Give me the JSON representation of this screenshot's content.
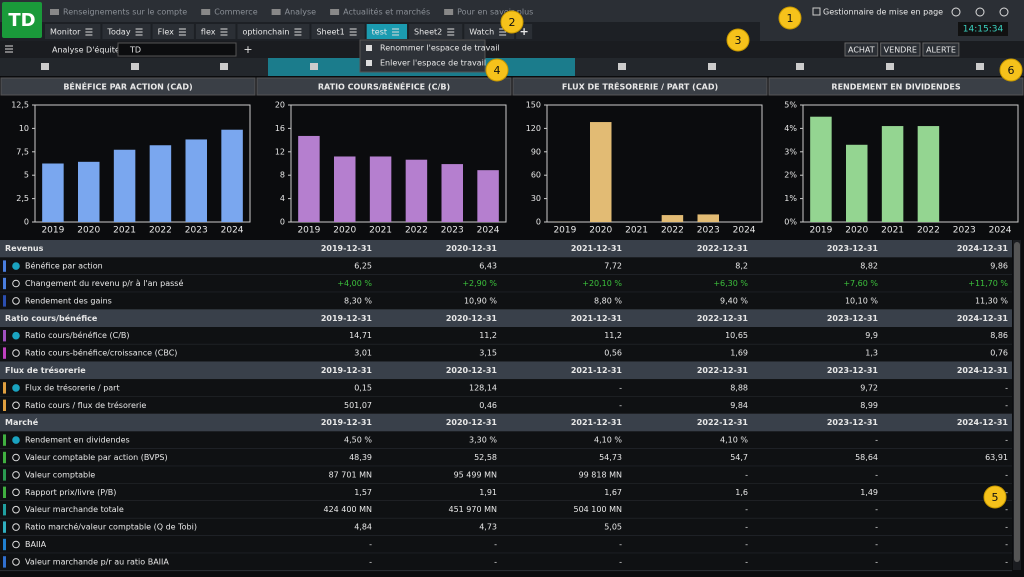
{
  "logo": "TD",
  "nav": [
    "Renseignements sur le compte",
    "Commerce",
    "Analyse",
    "Actualités et marchés",
    "Pour en savoir plus"
  ],
  "layout_manager": "Gestionnaire de mise en page",
  "clock": "14:15:34",
  "tabs": [
    "Monitor",
    "Today",
    "Flex",
    "flex",
    "optionchain",
    "Sheet1",
    "test",
    "Sheet2",
    "Watch"
  ],
  "active_tab": 6,
  "add_tab": "+",
  "toolbar": {
    "module": "Analyse D'équité",
    "search": "TD",
    "add": "+",
    "buttons": [
      "ACHAT",
      "VENDRE",
      "ALERTE"
    ]
  },
  "menu": [
    "Renommer l'espace de travail",
    "Enlever l'espace de travail"
  ],
  "badges": [
    "1",
    "2",
    "3",
    "4",
    "5",
    "6"
  ],
  "chart_data": [
    {
      "type": "bar",
      "title": "BÉNÉFICE PAR ACTION (CAD)",
      "categories": [
        "2019",
        "2020",
        "2021",
        "2022",
        "2023",
        "2024"
      ],
      "values": [
        6.25,
        6.43,
        7.72,
        8.2,
        8.82,
        9.86
      ],
      "color": "#7aa7ef",
      "ylim": [
        0,
        12.5
      ],
      "yticks": [
        0,
        {
          "value": 2.5,
          "label": "2,5"
        },
        5,
        {
          "value": 7.5,
          "label": "7,5"
        },
        10,
        {
          "value": 12.5,
          "label": "12,5"
        }
      ],
      "grid": false
    },
    {
      "type": "bar",
      "title": "RATIO COURS/BÉNÉFICE (C/B)",
      "categories": [
        "2019",
        "2020",
        "2021",
        "2022",
        "2023",
        "2024"
      ],
      "values": [
        14.71,
        11.2,
        11.2,
        10.65,
        9.9,
        8.86
      ],
      "color": "#b57fcf",
      "ylim": [
        0,
        20
      ],
      "yticks": [
        0,
        4,
        8,
        12,
        16,
        20
      ],
      "grid": false
    },
    {
      "type": "bar",
      "title": "FLUX DE TRÉSORERIE / PART (CAD)",
      "categories": [
        "2019",
        "2020",
        "2021",
        "2022",
        "2023",
        "2024"
      ],
      "values": [
        0.15,
        128.14,
        null,
        8.88,
        9.72,
        null
      ],
      "color": "#e2bb74",
      "ylim": [
        0,
        150
      ],
      "yticks": [
        0,
        30,
        60,
        90,
        120,
        150
      ],
      "grid": false
    },
    {
      "type": "bar",
      "title": "RENDEMENT EN DIVIDENDES",
      "categories": [
        "2019",
        "2020",
        "2021",
        "2022",
        "2023",
        "2024"
      ],
      "values": [
        4.5,
        3.3,
        4.1,
        4.1,
        null,
        null
      ],
      "color": "#94d591",
      "ylim": [
        0,
        5
      ],
      "yticks": [
        {
          "value": 0,
          "label": "0%"
        },
        {
          "value": 1,
          "label": "1%"
        },
        {
          "value": 2,
          "label": "2%"
        },
        {
          "value": 3,
          "label": "3%"
        },
        {
          "value": 4,
          "label": "4%"
        },
        {
          "value": 5,
          "label": "5%"
        }
      ],
      "grid": false
    }
  ],
  "table": {
    "sections": [
      {
        "title": "Revenus",
        "dates": [
          "2019-12-31",
          "2020-12-31",
          "2021-12-31",
          "2022-12-31",
          "2023-12-31",
          "2024-12-31"
        ],
        "rows": [
          {
            "label": "Bénéfice par action",
            "color": "#4a7fe0",
            "primary": true,
            "values": [
              "6,25",
              "6,43",
              "7,72",
              "8,2",
              "8,82",
              "9,86"
            ]
          },
          {
            "label": "Changement du revenu p/r à l'an passé",
            "color": "#4a7fe0",
            "primary": false,
            "value_color": "#3cc03c",
            "values": [
              "+4,00 %",
              "+2,90 %",
              "+20,10 %",
              "+6,30 %",
              "+7,60 %",
              "+11,70 %"
            ]
          },
          {
            "label": "Rendement des gains",
            "color": "#2b4fb0",
            "primary": false,
            "values": [
              "8,30 %",
              "10,90 %",
              "8,80 %",
              "9,40 %",
              "10,10 %",
              "11,30 %"
            ]
          }
        ]
      },
      {
        "title": "Ratio cours/bénéfice",
        "dates": [
          "2019-12-31",
          "2020-12-31",
          "2021-12-31",
          "2022-12-31",
          "2023-12-31",
          "2024-12-31"
        ],
        "rows": [
          {
            "label": "Ratio cours/bénéfice (C/B)",
            "color": "#a050c0",
            "primary": true,
            "values": [
              "14,71",
              "11,2",
              "11,2",
              "10,65",
              "9,9",
              "8,86"
            ]
          },
          {
            "label": "Ratio cours-bénéfice/croissance (CBC)",
            "color": "#c040c0",
            "primary": false,
            "values": [
              "3,01",
              "3,15",
              "0,56",
              "1,69",
              "1,3",
              "0,76"
            ]
          }
        ]
      },
      {
        "title": "Flux de trésorerie",
        "dates": [
          "2019-12-31",
          "2020-12-31",
          "2021-12-31",
          "2022-12-31",
          "2023-12-31",
          "2024-12-31"
        ],
        "rows": [
          {
            "label": "Flux de trésorerie / part",
            "color": "#e0a040",
            "primary": true,
            "values": [
              "0,15",
              "128,14",
              "-",
              "8,88",
              "9,72",
              "-"
            ]
          },
          {
            "label": "Ratio cours / flux de trésorerie",
            "color": "#e0a040",
            "primary": false,
            "values": [
              "501,07",
              "0,46",
              "-",
              "9,84",
              "8,99",
              "-"
            ]
          }
        ]
      },
      {
        "title": "Marché",
        "dates": [
          "2019-12-31",
          "2020-12-31",
          "2021-12-31",
          "2022-12-31",
          "2023-12-31",
          "2024-12-31"
        ],
        "rows": [
          {
            "label": "Rendement en dividendes",
            "color": "#40b040",
            "primary": true,
            "values": [
              "4,50 %",
              "3,30 %",
              "4,10 %",
              "4,10 %",
              "-",
              "-"
            ]
          },
          {
            "label": "Valeur comptable par action (BVPS)",
            "color": "#40b040",
            "primary": false,
            "values": [
              "48,39",
              "52,58",
              "54,73",
              "54,7",
              "58,64",
              "63,91"
            ]
          },
          {
            "label": "Valeur comptable",
            "color": "#2a9a50",
            "primary": false,
            "values": [
              "87 701 MN",
              "95 499 MN",
              "99 818 MN",
              "-",
              "-",
              "-"
            ]
          },
          {
            "label": "Rapport prix/livre (P/B)",
            "color": "#40b040",
            "primary": false,
            "values": [
              "1,57",
              "1,91",
              "1,67",
              "1,6",
              "1,49",
              "-"
            ]
          },
          {
            "label": "Valeur marchande totale",
            "color": "#20a0a0",
            "primary": false,
            "values": [
              "424 400 MN",
              "451 970 MN",
              "504 100 MN",
              "-",
              "-",
              "-"
            ]
          },
          {
            "label": "Ratio marché/valeur comptable (Q de Tobi)",
            "color": "#30b0c0",
            "primary": false,
            "values": [
              "4,84",
              "4,73",
              "5,05",
              "-",
              "-",
              "-"
            ]
          },
          {
            "label": "BAIIA",
            "color": "#2080d0",
            "primary": false,
            "values": [
              "-",
              "-",
              "-",
              "-",
              "-",
              "-"
            ]
          },
          {
            "label": "Valeur marchande p/r au ratio BAIIA",
            "color": "#3070d0",
            "primary": false,
            "values": [
              "-",
              "-",
              "-",
              "-",
              "-",
              "-"
            ]
          }
        ]
      }
    ]
  }
}
